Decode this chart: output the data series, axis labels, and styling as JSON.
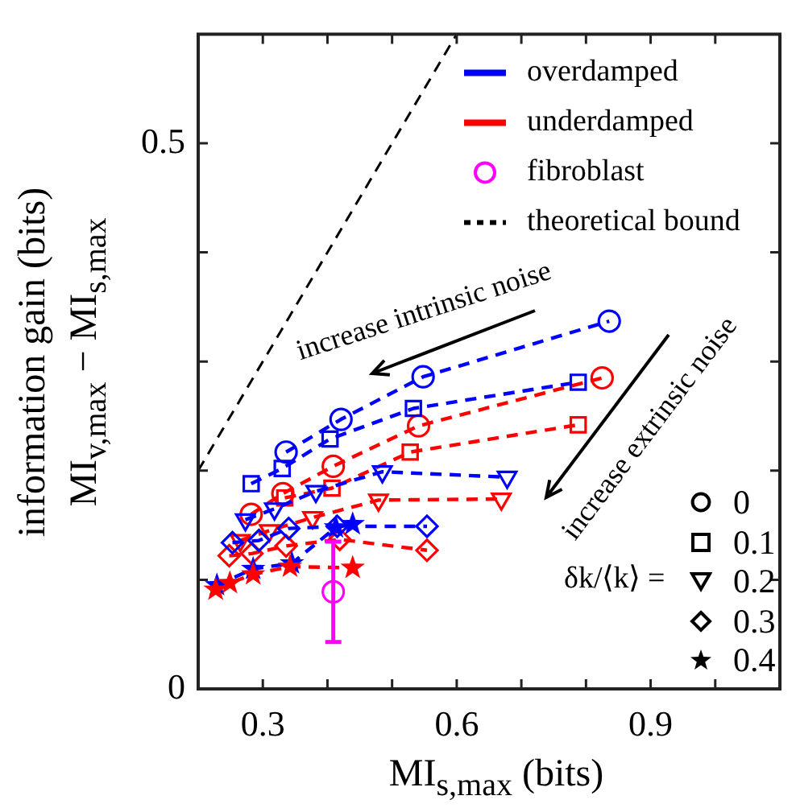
{
  "chart_data": {
    "type": "line",
    "xlabel": "MI$_{s,max}$ (bits)",
    "ylabel": "information gain (bits)\nMI$_{v,max}$ − MI$_{s,max}$",
    "xlim": [
      0.2,
      1.1
    ],
    "ylim": [
      0,
      0.6
    ],
    "xticks": [
      {
        "value": 0.2,
        "label": null
      },
      0.3,
      {
        "value": 0.4,
        "label": null
      },
      {
        "value": 0.5,
        "label": null
      },
      0.6,
      {
        "value": 0.7,
        "label": null
      },
      {
        "value": 0.8,
        "label": null
      },
      0.9,
      {
        "value": 1.0,
        "label": null
      },
      {
        "value": 1.1,
        "label": null
      }
    ],
    "yticks": [
      0,
      {
        "value": 0.1,
        "label": null
      },
      {
        "value": 0.2,
        "label": null
      },
      {
        "value": 0.3,
        "label": null
      },
      {
        "value": 0.4,
        "label": null
      },
      0.5,
      {
        "value": 0.6,
        "label": null
      }
    ],
    "grid": false,
    "legend": "top right",
    "annotations": [
      "increase intrinsic noise",
      "increase extrinsic noise",
      "δk/⟨k⟩ =",
      "0",
      "0.1",
      "0.2",
      "0.3",
      "0.4"
    ],
    "series": [
      {
        "name": "overdamped",
        "color": "#0000ff",
        "type": "line",
        "marker": "circle",
        "line_style": "dashed",
        "x": [
          0.336,
          0.421,
          0.548,
          0.836
        ],
        "values": [
          0.217,
          0.247,
          0.286,
          0.337
        ]
      },
      {
        "color": "#0000ff",
        "type": "line",
        "marker": "square",
        "line_style": "dashed",
        "x": [
          0.282,
          0.33,
          0.404,
          0.533,
          0.788
        ],
        "values": [
          0.188,
          0.202,
          0.229,
          0.257,
          0.281
        ]
      },
      {
        "color": "#0000ff",
        "type": "line",
        "marker": "triangle",
        "line_style": "dashed",
        "x": [
          0.273,
          0.318,
          0.382,
          0.485,
          0.678
        ],
        "values": [
          0.155,
          0.165,
          0.181,
          0.199,
          0.194
        ]
      },
      {
        "color": "#0000ff",
        "type": "line",
        "marker": "diamond",
        "line_style": "dashed",
        "x": [
          0.253,
          0.294,
          0.34,
          0.415,
          0.554
        ],
        "values": [
          0.134,
          0.136,
          0.147,
          0.149,
          0.149
        ]
      },
      {
        "color": "#0000ff",
        "type": "line",
        "marker": "star",
        "line_style": "dashed",
        "x": [
          0.229,
          0.285,
          0.345,
          0.413,
          0.439
        ],
        "values": [
          0.095,
          0.11,
          0.115,
          0.148,
          0.151
        ]
      },
      {
        "name": "underdamped",
        "color": "#ff0000",
        "type": "line",
        "marker": "circle",
        "line_style": "dashed",
        "x": [
          0.282,
          0.331,
          0.409,
          0.541,
          0.825
        ],
        "values": [
          0.16,
          0.179,
          0.204,
          0.241,
          0.285
        ]
      },
      {
        "color": "#ff0000",
        "type": "line",
        "marker": "square",
        "line_style": "dashed",
        "x": [
          0.334,
          0.407,
          0.528,
          0.788
        ],
        "values": [
          0.175,
          0.184,
          0.217,
          0.242
        ]
      },
      {
        "color": "#ff0000",
        "type": "line",
        "marker": "triangle",
        "line_style": "dashed",
        "x": [
          0.265,
          0.31,
          0.377,
          0.479,
          0.669
        ],
        "values": [
          0.136,
          0.145,
          0.157,
          0.173,
          0.174
        ]
      },
      {
        "color": "#ff0000",
        "type": "line",
        "marker": "diamond",
        "line_style": "dashed",
        "x": [
          0.248,
          0.283,
          0.336,
          0.419,
          0.554
        ],
        "values": [
          0.122,
          0.124,
          0.131,
          0.137,
          0.127
        ]
      },
      {
        "color": "#ff0000",
        "type": "line",
        "marker": "star",
        "line_style": "dashed",
        "x": [
          0.227,
          0.249,
          0.285,
          0.342,
          0.439
        ],
        "values": [
          0.091,
          0.097,
          0.105,
          0.112,
          0.111
        ]
      },
      {
        "name": "fibroblast",
        "color": "#ff00ff",
        "type": "scatter",
        "marker": "circle",
        "x": [
          0.409
        ],
        "values": [
          0.089
        ],
        "errors": [
          0.046
        ]
      },
      {
        "name": "theoretical bound",
        "color": "#000000",
        "type": "line",
        "marker": "none",
        "line_style": "dashed",
        "x": [
          0.2,
          0.6
        ],
        "values": [
          0.2,
          0.6
        ]
      }
    ]
  }
}
